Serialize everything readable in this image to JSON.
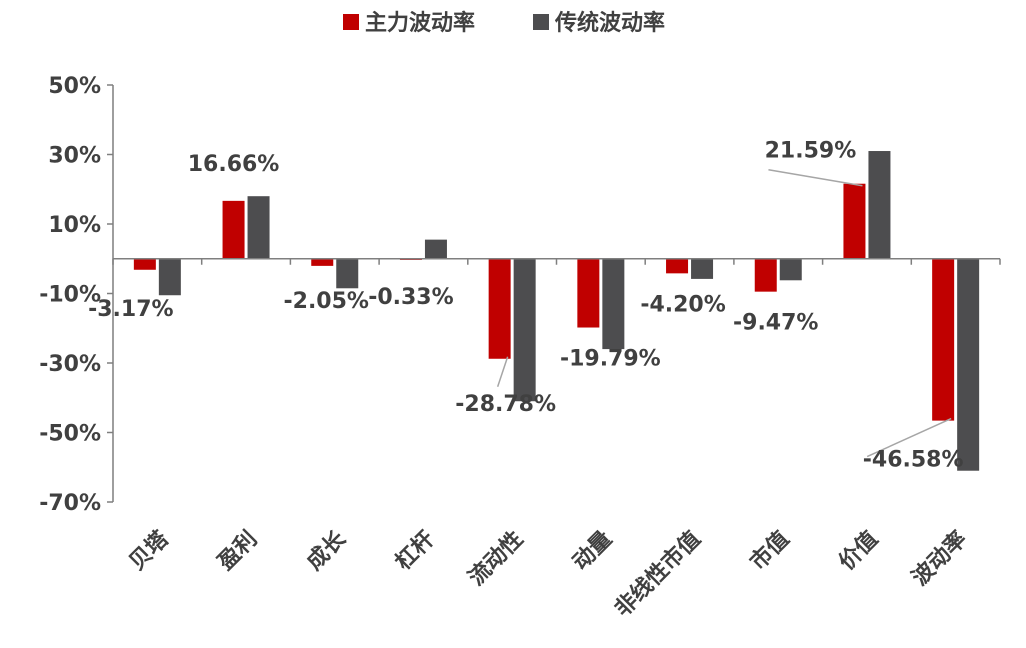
{
  "chart_data": {
    "type": "bar",
    "title": "",
    "xlabel": "",
    "ylabel": "",
    "ylim": [
      -70,
      50
    ],
    "yticks": [
      50,
      30,
      10,
      -10,
      -30,
      -50,
      -70
    ],
    "tick_suffix": "%",
    "grid": false,
    "legend_position": "top-center",
    "categories": [
      "贝塔",
      "盈利",
      "成长",
      "杠杆",
      "流动性",
      "动量",
      "非线性市值",
      "市值",
      "价值",
      "波动率"
    ],
    "series": [
      {
        "name": "主力波动率",
        "color": "#C00000",
        "values": [
          -3.17,
          16.66,
          -2.05,
          -0.33,
          -28.78,
          -19.79,
          -4.2,
          -9.47,
          21.59,
          -46.58
        ],
        "labels": [
          "-3.17%",
          "16.66%",
          "-2.05%",
          "-0.33%",
          "-28.78%",
          "-19.79%",
          "-4.20%",
          "-9.47%",
          "21.59%",
          "-46.58%"
        ]
      },
      {
        "name": "传统波动率",
        "color": "#4D4D4F",
        "values": [
          -10.5,
          18,
          -8.5,
          5.5,
          -41,
          -26,
          -5.8,
          -6.2,
          31,
          -61
        ]
      }
    ]
  }
}
